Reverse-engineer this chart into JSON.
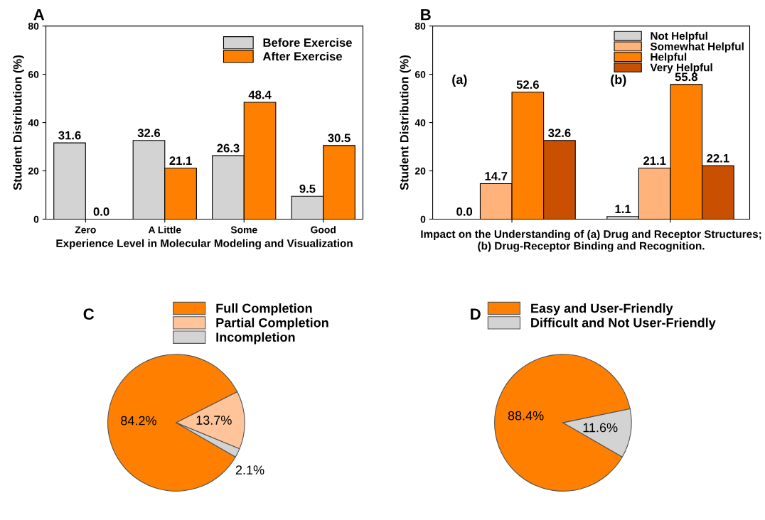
{
  "chart_data": [
    {
      "type": "bar",
      "title": "A",
      "xlabel": "Experience Level in Molecular Modeling and Visualization",
      "ylabel": "Student Distribution (%)",
      "categories": [
        "Zero",
        "A Little",
        "Some",
        "Good"
      ],
      "series": [
        {
          "name": "Before Exercise",
          "color": "#d3d3d3",
          "values": [
            31.6,
            32.6,
            26.3,
            9.5
          ],
          "value_labels": [
            "31.6",
            "32.6",
            "26.3",
            "9.5"
          ]
        },
        {
          "name": "After Exercise",
          "color": "#ff8000",
          "values": [
            0.0,
            21.1,
            48.4,
            30.5
          ],
          "value_labels": [
            "0.0",
            "21.1",
            "48.4",
            "30.5"
          ]
        }
      ],
      "ylim": [
        0,
        80
      ],
      "yticks": [
        0,
        20,
        40,
        60,
        80
      ],
      "legend": "top right",
      "grid": false
    },
    {
      "type": "bar",
      "title": "B",
      "xlabel": "Impact on the Understanding of (a) Drug and Receptor Structures; (b) Drug-Receptor Binding and Recognition.",
      "ylabel": "Student Distribution (%)",
      "categories": [
        null,
        null
      ],
      "series": [
        {
          "name": "Not Helpful",
          "color": "#d3d3d3",
          "values": [
            0.0,
            1.1
          ],
          "value_labels": [
            "0.0",
            "1.1"
          ]
        },
        {
          "name": "Somewhat Helpful",
          "color": "#ffb27a",
          "values": [
            14.7,
            21.1
          ],
          "value_labels": [
            "14.7",
            "21.1"
          ]
        },
        {
          "name": "Helpful",
          "color": "#ff8000",
          "values": [
            52.6,
            55.8
          ],
          "value_labels": [
            "52.6",
            "55.8"
          ]
        },
        {
          "name": "Very Helpful",
          "color": "#c85000",
          "values": [
            32.6,
            22.1
          ],
          "value_labels": [
            "32.6",
            "22.1"
          ]
        }
      ],
      "annotations": [
        "(a)",
        "(b)"
      ],
      "ylim": [
        0,
        80
      ],
      "yticks": [
        0,
        20,
        40,
        60,
        80
      ],
      "legend": "top right",
      "grid": false
    },
    {
      "type": "pie",
      "title": "C",
      "categories": [
        "Full Completion",
        "Partial Completion",
        "Incompletion"
      ],
      "values": [
        84.2,
        13.7,
        2.1
      ],
      "colors": [
        "#ff8000",
        "#ffc49a",
        "#d3d3d3"
      ],
      "value_labels": [
        "84.2%",
        "13.7%",
        "2.1%"
      ],
      "legend": "top right"
    },
    {
      "type": "pie",
      "title": "D",
      "categories": [
        "Easy and User-Friendly",
        "Difficult and Not User-Friendly"
      ],
      "values": [
        88.4,
        11.6
      ],
      "colors": [
        "#ff8000",
        "#d3d3d3"
      ],
      "value_labels": [
        "88.4%",
        "11.6%"
      ],
      "legend": "top right"
    }
  ]
}
